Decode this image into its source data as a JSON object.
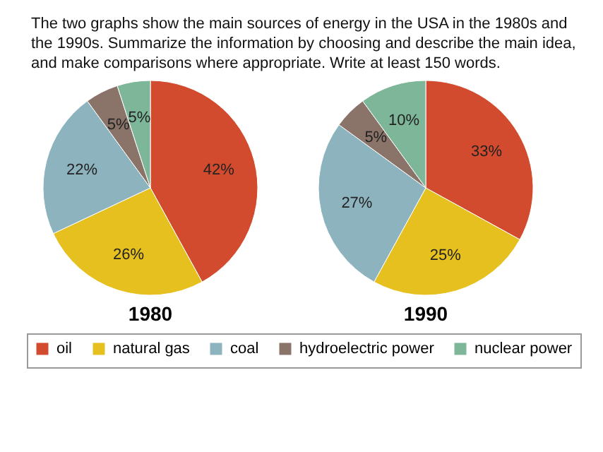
{
  "chart_data": {
    "type": "pie",
    "title": "The two graphs show the main sources of energy in the USA in the 1980s and the 1990s. Summarize the information by choosing and describe the main idea, and make comparisons where appropriate. Write at least 150 words.",
    "categories": [
      "oil",
      "natural gas",
      "coal",
      "hydroelectric power",
      "nuclear power"
    ],
    "colors": [
      "#d24b2e",
      "#e6c01e",
      "#8db3bf",
      "#8a746a",
      "#7db698"
    ],
    "series": [
      {
        "name": "1980",
        "values": [
          42,
          26,
          22,
          5,
          5
        ],
        "value_labels": [
          "42%",
          "26%",
          "22%",
          "5%",
          "5%"
        ]
      },
      {
        "name": "1990",
        "values": [
          33,
          25,
          27,
          5,
          10
        ],
        "value_labels": [
          "33%",
          "25%",
          "27%",
          "5%",
          "10%"
        ]
      }
    ],
    "legend": "bottom"
  }
}
